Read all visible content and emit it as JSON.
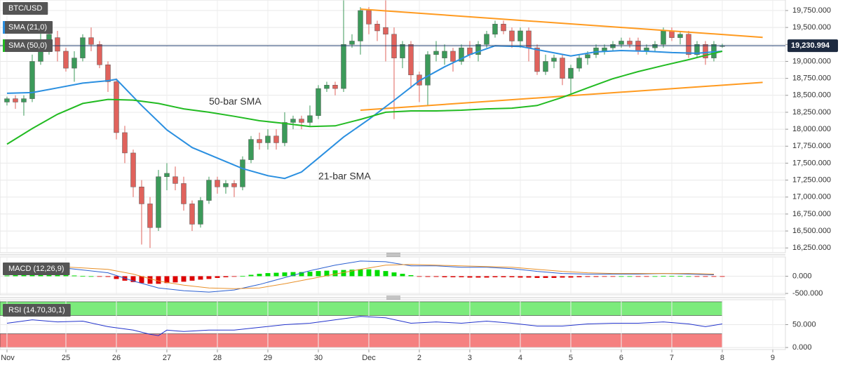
{
  "chart_data": [
    {
      "type": "candlestick",
      "title": "BTC/USD",
      "xlim": [
        -0.83,
        92.5
      ],
      "ylim": [
        16180,
        19905
      ],
      "yticks": [
        {
          "value": 16250,
          "label": "16,250.000"
        },
        {
          "value": 16500,
          "label": "16,500.000"
        },
        {
          "value": 16750,
          "label": "16,750.000"
        },
        {
          "value": 17000,
          "label": "17,000.000"
        },
        {
          "value": 17250,
          "label": "17,250.000"
        },
        {
          "value": 17500,
          "label": "17,500.000"
        },
        {
          "value": 17750,
          "label": "17,750.000"
        },
        {
          "value": 18000,
          "label": "18,000.000"
        },
        {
          "value": 18250,
          "label": "18,250.000"
        },
        {
          "value": 18500,
          "label": "18,500.000"
        },
        {
          "value": 18750,
          "label": "18,750.000"
        },
        {
          "value": 19000,
          "label": "19,000.000"
        },
        {
          "value": 19250,
          "label": "19,250.000"
        },
        {
          "value": 19500,
          "label": "19,500.000"
        },
        {
          "value": 19750,
          "label": "19,750.000"
        }
      ],
      "grid": true,
      "up_color": "#3c9a5a",
      "down_color": "#e0625c",
      "candles": {
        "open": [
          18400,
          18450,
          18400,
          18450,
          19000,
          19300,
          19350,
          19150,
          18900,
          19050,
          19350,
          19250,
          18950,
          18700,
          17950,
          17650,
          17150,
          16900,
          16550,
          17300,
          17300,
          17200,
          16900,
          16600,
          16950,
          17250,
          17150,
          17200,
          17150,
          17550,
          17850,
          17800,
          17900,
          17800,
          18100,
          18150,
          18100,
          18200,
          18600,
          18650,
          18600,
          19250,
          19300,
          19750,
          19550,
          19500,
          19400,
          19050,
          19250,
          18800,
          18650,
          19100,
          19050,
          19150,
          19000,
          19200,
          19100,
          19250,
          19400,
          19550,
          19450,
          19300,
          19450,
          19200,
          18850,
          19000,
          19050,
          18750,
          18900,
          19050,
          19100,
          19150,
          19200,
          19250,
          19300,
          19300,
          19150,
          19200,
          19250,
          19450,
          19350,
          19400,
          19100,
          19250,
          19050,
          19220
        ],
        "high": [
          18480,
          18500,
          18500,
          19100,
          19450,
          19500,
          19450,
          19200,
          19150,
          19400,
          19500,
          19300,
          19000,
          18750,
          18050,
          17700,
          17250,
          17000,
          17400,
          17500,
          17450,
          17300,
          16950,
          17000,
          17300,
          17300,
          17250,
          17250,
          17600,
          17900,
          17950,
          18000,
          18000,
          18250,
          18200,
          18200,
          18350,
          18650,
          18700,
          18700,
          19900,
          19400,
          19800,
          19800,
          19600,
          19900,
          19500,
          19300,
          19300,
          18850,
          19150,
          19300,
          19250,
          19200,
          19250,
          19300,
          19300,
          19450,
          19600,
          19600,
          19500,
          19500,
          19500,
          19250,
          19100,
          19100,
          19100,
          18950,
          19100,
          19150,
          19250,
          19250,
          19300,
          19350,
          19350,
          19350,
          19250,
          19300,
          19500,
          19500,
          19450,
          19450,
          19300,
          19300,
          19300,
          19260
        ],
        "low": [
          18350,
          18300,
          18200,
          18400,
          18950,
          19100,
          19000,
          18850,
          18700,
          19000,
          19150,
          18900,
          18550,
          17850,
          17500,
          17000,
          16300,
          16250,
          16500,
          17100,
          17100,
          16800,
          16500,
          16550,
          16900,
          17050,
          17050,
          17000,
          17100,
          17500,
          17700,
          17700,
          17700,
          17750,
          18000,
          18000,
          18050,
          18150,
          18550,
          18500,
          18550,
          19200,
          19100,
          19400,
          19300,
          19000,
          18150,
          18900,
          18600,
          18400,
          18350,
          19000,
          18950,
          18850,
          18950,
          19050,
          19000,
          19200,
          19350,
          19400,
          19200,
          19200,
          19000,
          18800,
          18800,
          18900,
          18650,
          18500,
          18850,
          18950,
          19050,
          19100,
          19150,
          19200,
          19200,
          19100,
          19100,
          19150,
          19200,
          19300,
          19250,
          19050,
          19050,
          18950,
          19000,
          19200
        ],
        "close": [
          18450,
          18400,
          18450,
          19000,
          19300,
          19400,
          19150,
          18900,
          19050,
          19350,
          19250,
          18950,
          18700,
          17950,
          17650,
          17150,
          16900,
          16550,
          17300,
          17350,
          17200,
          16900,
          16600,
          16950,
          17250,
          17150,
          17200,
          17150,
          17550,
          17850,
          17800,
          17900,
          17800,
          18100,
          18150,
          18100,
          18200,
          18600,
          18650,
          18600,
          19250,
          19300,
          19750,
          19550,
          19450,
          19400,
          19050,
          19250,
          18800,
          18650,
          19100,
          19150,
          19150,
          19000,
          19200,
          19100,
          19250,
          19400,
          19550,
          19450,
          19300,
          19450,
          19200,
          18850,
          19000,
          19050,
          18750,
          18900,
          19050,
          19100,
          19200,
          19200,
          19250,
          19300,
          19250,
          19150,
          19200,
          19250,
          19450,
          19350,
          19400,
          19100,
          19250,
          19050,
          19250,
          19231
        ]
      },
      "series": [
        {
          "name": "SMA (21,0)",
          "color": "#2a8fe0",
          "x": [
            0,
            3,
            6,
            9,
            12,
            13,
            16,
            19,
            22,
            25,
            28,
            31,
            33,
            35,
            37,
            40,
            43,
            46,
            49,
            52,
            55,
            58,
            61,
            64,
            67,
            70,
            73,
            76,
            79,
            82,
            85
          ],
          "values": [
            18530,
            18540,
            18610,
            18680,
            18715,
            18735,
            18350,
            17990,
            17730,
            17575,
            17420,
            17315,
            17275,
            17370,
            17575,
            17885,
            18145,
            18425,
            18715,
            18920,
            19100,
            19230,
            19220,
            19150,
            19080,
            19140,
            19160,
            19150,
            19130,
            19120,
            19150
          ]
        },
        {
          "name": "SMA (50,0)",
          "color": "#22bb22",
          "x": [
            0,
            3,
            6,
            9,
            12,
            15,
            18,
            21,
            24,
            27,
            30,
            33,
            36,
            39,
            42,
            45,
            48,
            51,
            54,
            57,
            60,
            63,
            66,
            69,
            72,
            75,
            78,
            81,
            84,
            85
          ],
          "values": [
            17780,
            18010,
            18220,
            18380,
            18440,
            18430,
            18380,
            18300,
            18250,
            18190,
            18125,
            18085,
            18040,
            18050,
            18145,
            18250,
            18270,
            18270,
            18280,
            18300,
            18310,
            18350,
            18470,
            18610,
            18745,
            18850,
            18940,
            19025,
            19120,
            19150
          ]
        }
      ],
      "trendlines": [
        {
          "color": "#ff9a1f",
          "x": [
            42,
            89.8
          ],
          "values": [
            19770,
            19355
          ]
        },
        {
          "color": "#ff9a1f",
          "x": [
            42,
            89.8
          ],
          "values": [
            18280,
            18690
          ]
        }
      ],
      "annotations": [
        {
          "text": "50-bar SMA",
          "x": 24,
          "y": 18400,
          "color": "#22bb22"
        },
        {
          "text": "21-bar SMA",
          "x": 37,
          "y": 17300,
          "color": "#2a8fe0"
        }
      ],
      "last_price": {
        "value": 19230.994,
        "label": "19,230.994"
      }
    },
    {
      "type": "macd",
      "title": "MACD (12,26,9)",
      "xlim": [
        -0.83,
        92.5
      ],
      "ylim": [
        -540,
        560
      ],
      "yticks": [
        {
          "value": 0,
          "label": "0.000"
        },
        {
          "value": -500,
          "label": "-500.000"
        }
      ],
      "grid": true,
      "up_color": "#00dd00",
      "down_color": "#dd0000",
      "histogram": [
        20,
        30,
        30,
        40,
        40,
        40,
        30,
        30,
        20,
        10,
        0,
        -10,
        -20,
        -80,
        -130,
        -170,
        -200,
        -220,
        -220,
        -200,
        -180,
        -160,
        -130,
        -100,
        -80,
        -50,
        -30,
        -10,
        10,
        40,
        70,
        90,
        100,
        110,
        120,
        120,
        130,
        150,
        160,
        170,
        180,
        190,
        200,
        200,
        180,
        150,
        110,
        70,
        30,
        -10,
        -20,
        -20,
        -30,
        -30,
        -30,
        -40,
        -40,
        -40,
        -30,
        -30,
        -30,
        -40,
        -40,
        -50,
        -50,
        -50,
        -40,
        -40,
        -30,
        -20,
        -20,
        -10,
        -10,
        0,
        0,
        -10,
        -10,
        0,
        10,
        10,
        10,
        0,
        -10,
        -10,
        -10,
        -10
      ],
      "series": [
        {
          "color": "#2a5fd0",
          "x": [
            0,
            6,
            12,
            15,
            18,
            21,
            24,
            27,
            30,
            33,
            36,
            39,
            42,
            45,
            48,
            51,
            54,
            57,
            60,
            63,
            66,
            69,
            72,
            75,
            78,
            81,
            84
          ],
          "values": [
            300,
            260,
            100,
            -140,
            -340,
            -420,
            -460,
            -400,
            -240,
            -40,
            160,
            320,
            440,
            420,
            300,
            300,
            260,
            260,
            220,
            140,
            80,
            60,
            60,
            60,
            80,
            60,
            40
          ]
        },
        {
          "color": "#e8912a",
          "x": [
            0,
            6,
            12,
            15,
            18,
            21,
            24,
            27,
            30,
            33,
            36,
            39,
            42,
            45,
            48,
            51,
            54,
            57,
            60,
            63,
            66,
            69,
            72,
            75,
            78,
            81,
            84
          ],
          "values": [
            220,
            280,
            200,
            60,
            -140,
            -260,
            -340,
            -360,
            -340,
            -220,
            -80,
            60,
            200,
            320,
            340,
            320,
            300,
            280,
            260,
            200,
            140,
            100,
            80,
            80,
            80,
            80,
            60
          ]
        }
      ]
    },
    {
      "type": "line",
      "title": "RSI (14,70,30,1)",
      "xlim": [
        -0.83,
        92.5
      ],
      "ylim": [
        -4.5,
        104.5
      ],
      "yticks": [
        {
          "value": 0,
          "label": "0.000"
        },
        {
          "value": 50,
          "label": "50.000"
        }
      ],
      "grid": true,
      "bands": [
        {
          "range": [
            70,
            100
          ],
          "color": "#7ceb7c"
        },
        {
          "range": [
            0,
            30
          ],
          "color": "#f58080"
        }
      ],
      "xticks": [
        {
          "value": 0,
          "label": "Nov"
        },
        {
          "value": 7,
          "label": "25"
        },
        {
          "value": 13,
          "label": "26"
        },
        {
          "value": 19,
          "label": "27"
        },
        {
          "value": 25,
          "label": "28"
        },
        {
          "value": 31,
          "label": "29"
        },
        {
          "value": 37,
          "label": "30"
        },
        {
          "value": 43,
          "label": "Dec"
        },
        {
          "value": 49,
          "label": "2"
        },
        {
          "value": 55,
          "label": "3"
        },
        {
          "value": 61,
          "label": "4"
        },
        {
          "value": 67,
          "label": "5"
        },
        {
          "value": 73,
          "label": "6"
        },
        {
          "value": 79,
          "label": "7"
        },
        {
          "value": 85,
          "label": "8"
        },
        {
          "value": 91,
          "label": "9"
        }
      ],
      "series": [
        {
          "color": "#2233cc",
          "x": [
            0,
            3,
            6,
            9,
            12,
            15,
            17,
            18,
            19,
            21,
            24,
            27,
            30,
            33,
            36,
            39,
            42,
            45,
            48,
            51,
            54,
            57,
            60,
            63,
            66,
            69,
            72,
            75,
            78,
            81,
            83,
            85
          ],
          "values": [
            53,
            60.6,
            56,
            57.6,
            45.5,
            38,
            29,
            26,
            38,
            35,
            38,
            38,
            44,
            50,
            53,
            60.6,
            68,
            65,
            53,
            56,
            53,
            57.6,
            53,
            47,
            47,
            51.5,
            53,
            53,
            56,
            51.5,
            45.5,
            51.5
          ]
        }
      ]
    }
  ]
}
